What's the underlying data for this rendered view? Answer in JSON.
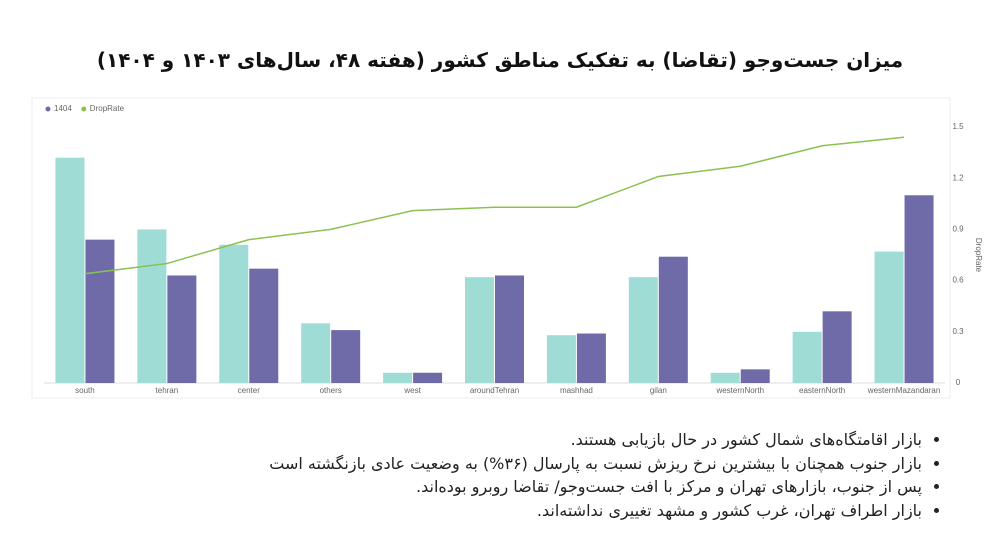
{
  "title": "میزان جست‌وجو (تقاضا) به تفکیک مناطق کشور (هفته ۴۸، سال‌های ۱۴۰۳ و ۱۴۰۴)",
  "chart_data": {
    "type": "bar",
    "categories": [
      "south",
      "tehran",
      "center",
      "others",
      "west",
      "aroundTehran",
      "mashhad",
      "gilan",
      "westernNorth",
      "easternNorth",
      "westernMazandaran"
    ],
    "series": [
      {
        "color": "#9fdcd6",
        "values": [
          1.32,
          0.9,
          0.81,
          0.35,
          0.06,
          0.62,
          0.28,
          0.62,
          0.06,
          0.3,
          0.77
        ]
      },
      {
        "name": "1404",
        "color": "#6f6ba9",
        "values": [
          0.84,
          0.63,
          0.67,
          0.31,
          0.06,
          0.63,
          0.29,
          0.74,
          0.08,
          0.42,
          1.1
        ]
      },
      {
        "name": "DropRate",
        "type": "line",
        "axis": "y2",
        "color": "#8cc152",
        "values": [
          0.64,
          0.7,
          0.84,
          0.9,
          1.01,
          1.03,
          1.03,
          1.21,
          1.27,
          1.39,
          1.44
        ]
      }
    ],
    "ylim": [
      0,
      1.5
    ],
    "y2lim": [
      0,
      1.5
    ],
    "y2ticks": [
      0,
      0.3,
      0.6,
      0.9,
      1.2,
      1.5
    ],
    "y2label": "DropRate",
    "legend": "top-left"
  },
  "notes": [
    "بازار اقامتگاه‌های شمال کشور در حال بازیابی هستند.",
    "بازار جنوب همچنان با بیشترین نرخ ریزش نسبت به پارسال (۳۶%) به وضعیت عادی بازنگشته است",
    "پس از جنوب، بازارهای تهران و مرکز با افت جست‌وجو/ تقاضا روبرو بوده‌اند.",
    "بازار اطراف تهران، غرب کشور و مشهد تغییری نداشته‌اند."
  ]
}
